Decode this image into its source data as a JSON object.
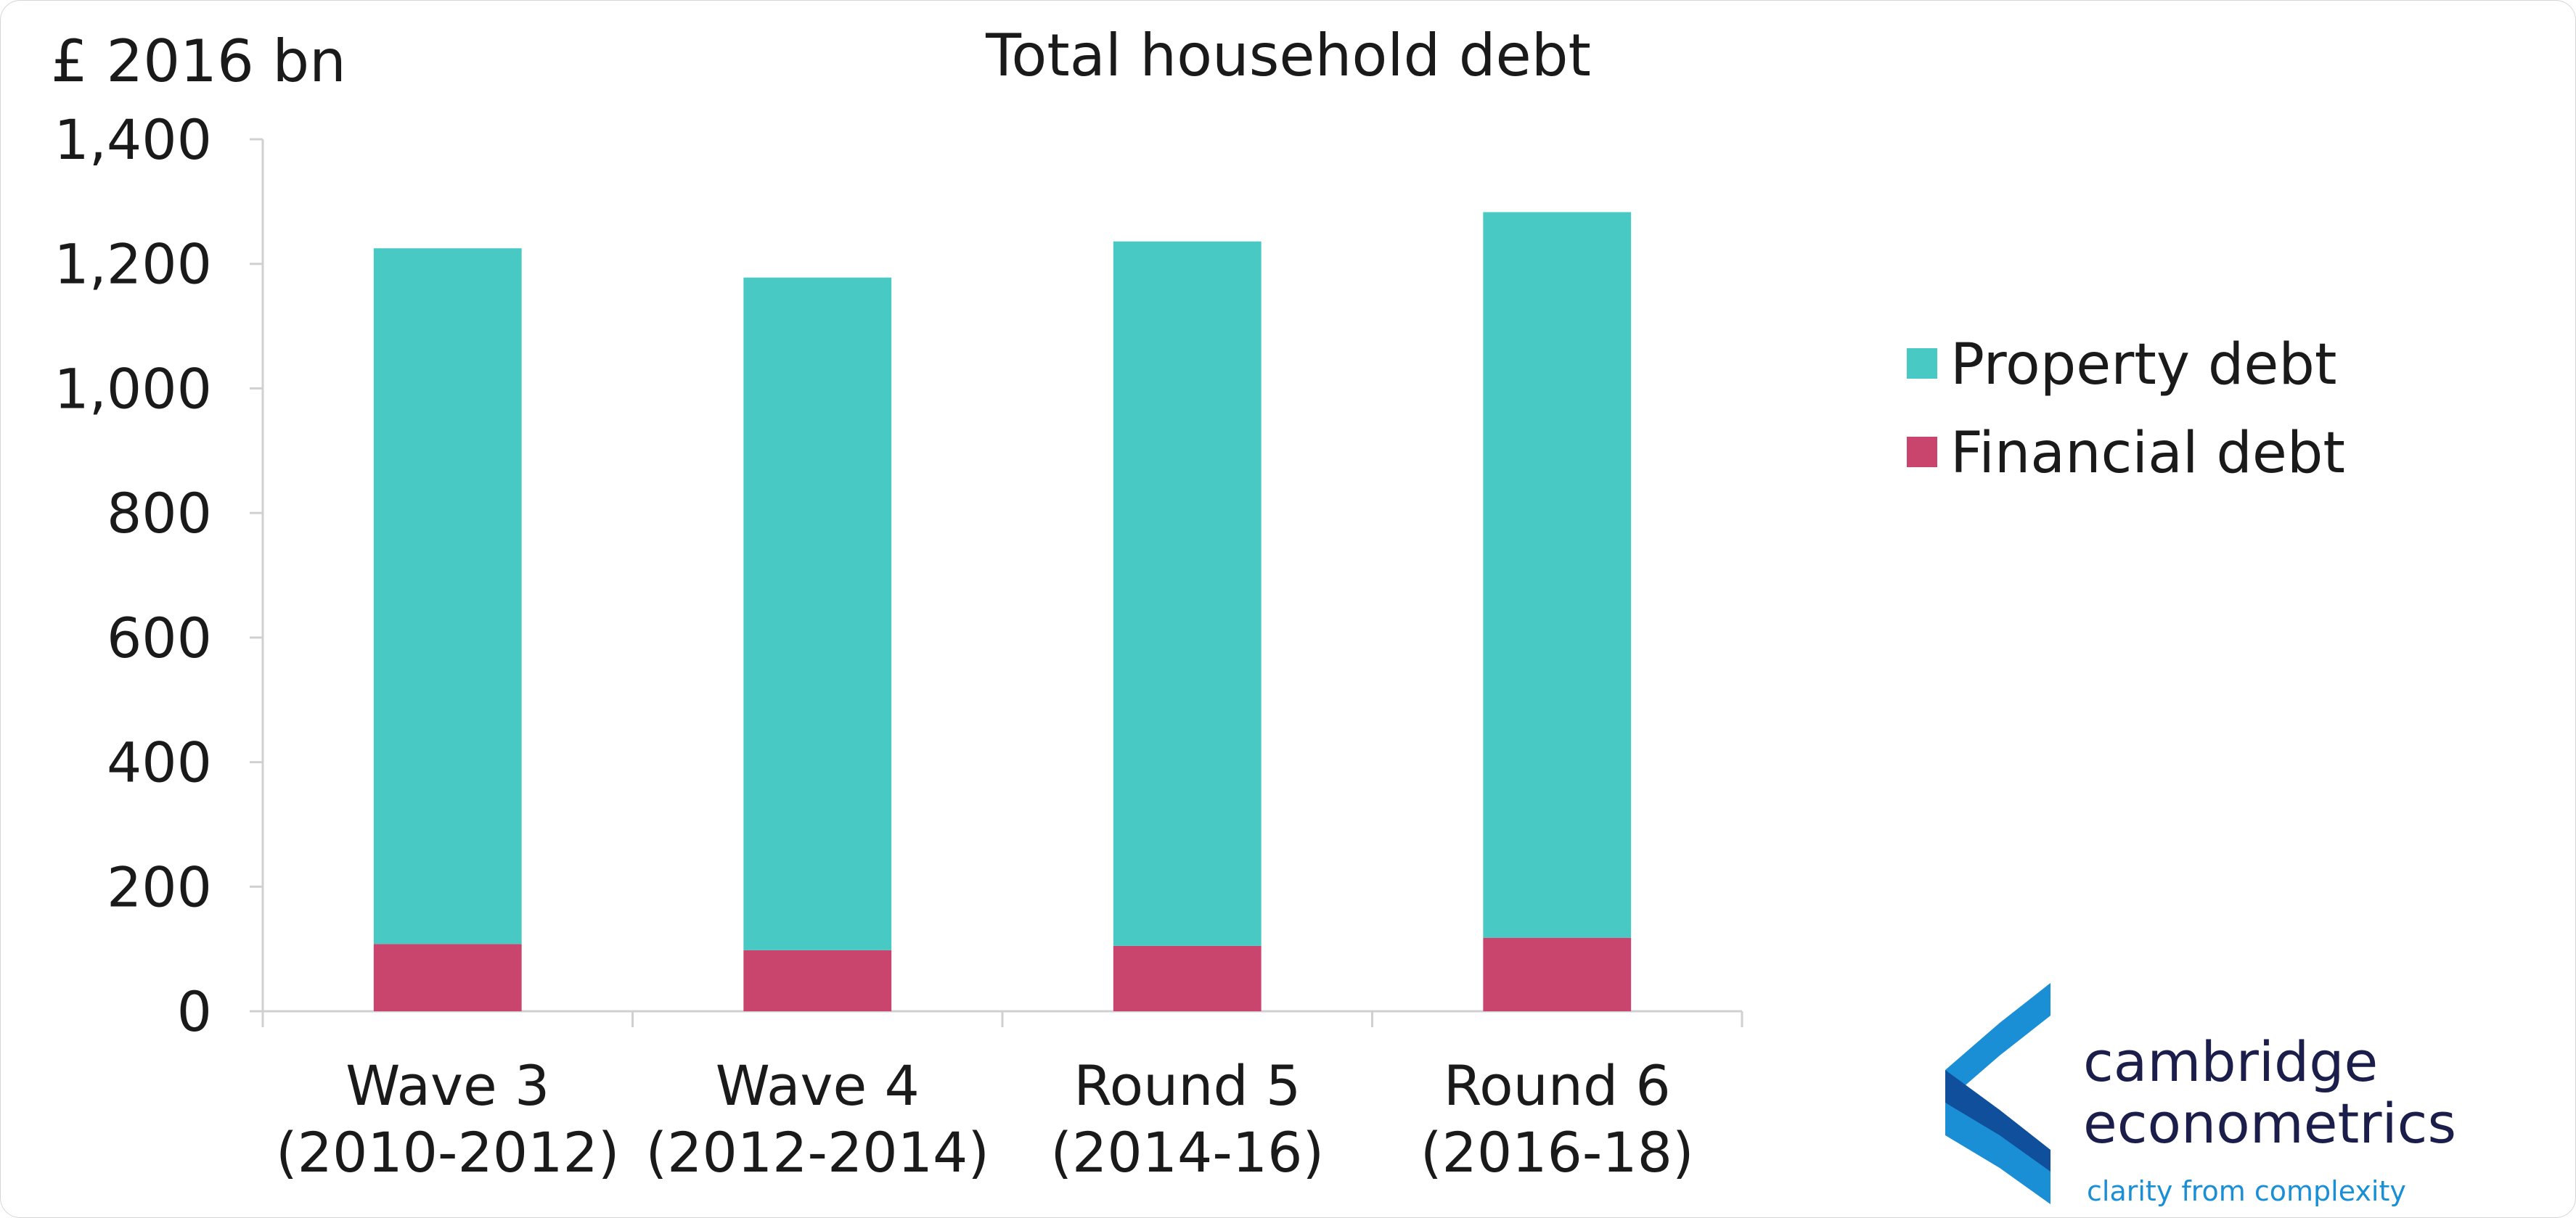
{
  "chart_data": {
    "type": "bar",
    "stacked": true,
    "title": "Total household debt",
    "ylabel": "£ 2016 bn",
    "xlabel": "",
    "ylim": [
      0,
      1400
    ],
    "yticks": [
      "0",
      "200",
      "400",
      "600",
      "800",
      "1,000",
      "1,200",
      "1,400"
    ],
    "ytick_values": [
      0,
      200,
      400,
      600,
      800,
      1000,
      1200,
      1400
    ],
    "categories": [
      [
        "Wave 3",
        "(2010-2012)"
      ],
      [
        "Wave 4",
        "(2012-2014)"
      ],
      [
        "Round 5",
        "(2014-16)"
      ],
      [
        "Round 6",
        "(2016-18)"
      ]
    ],
    "series": [
      {
        "name": "Financial debt",
        "color": "#c9456e",
        "values": [
          108,
          98,
          105,
          118
        ]
      },
      {
        "name": "Property debt",
        "color": "#48c9c4",
        "values": [
          1117,
          1080,
          1131,
          1165
        ]
      }
    ],
    "legend": {
      "position": "right",
      "order": [
        "Property debt",
        "Financial debt"
      ]
    },
    "grid": false
  },
  "logo": {
    "name_line1": "cambridge",
    "name_line2": "econometrics",
    "tagline": "clarity from complexity",
    "icon": "cambridge-econometrics-chevron-icon",
    "colors": {
      "primary": "#1a8fd6",
      "dark": "#0f4f9c",
      "text": "#1b1e4a"
    }
  }
}
